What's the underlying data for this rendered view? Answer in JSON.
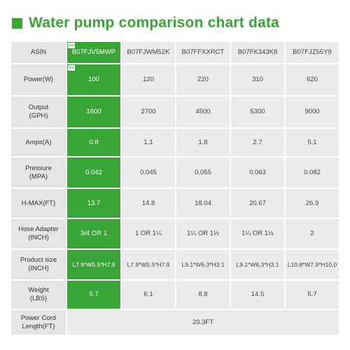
{
  "title": "Water pump comparison chart data",
  "accent_color": "#3aa537",
  "header": {
    "label": "ASIN",
    "models": [
      "B07FJV5MWP",
      "B07FJWM52K",
      "B07FFXXRCT",
      "B07FK343K8",
      "B07FJZ55Y9"
    ]
  },
  "rows": [
    {
      "label": "Power(W)",
      "values": [
        "100",
        "120",
        "220",
        "310",
        "620"
      ]
    },
    {
      "label": "Output\n(GPH)",
      "values": [
        "1600",
        "2700",
        "4500",
        "5300",
        "9000"
      ]
    },
    {
      "label": "Amps(A)",
      "values": [
        "0.8",
        "1.1",
        "1.8",
        "2.7",
        "5.1"
      ]
    },
    {
      "label": "Pressure\n(MPA)",
      "values": [
        "0.042",
        "0.045",
        "0.055",
        "0.063",
        "0.082"
      ]
    },
    {
      "label": "H-MAX(FT)",
      "values": [
        "13.7",
        "14.8",
        "18.04",
        "20.67",
        "26.9"
      ]
    },
    {
      "label": "Hose Adapter\n(INCH)",
      "values": [
        "3/4 OR 1",
        "1 OR 1¼",
        "1¼ OR 1½",
        "1¼ OR 1½",
        "2"
      ]
    },
    {
      "label": "Product size\n(INCH)",
      "values": [
        "L7.9*W5.5*H7.9",
        "L7.9*W5.5*H7.9",
        "L9.1*W6.3*H3.1",
        "L9.1*W6.3*H3.1",
        "L10.8*W7.9*H10.0"
      ]
    },
    {
      "label": "Weight\n(LBS)",
      "values": [
        "5.7",
        "6.1",
        "8.8",
        "14.5",
        "5.7"
      ]
    }
  ],
  "footer": {
    "label": "Power Cord\nLength(FT)",
    "value": "20.3FT"
  },
  "badges": [
    "hot",
    "hot"
  ]
}
